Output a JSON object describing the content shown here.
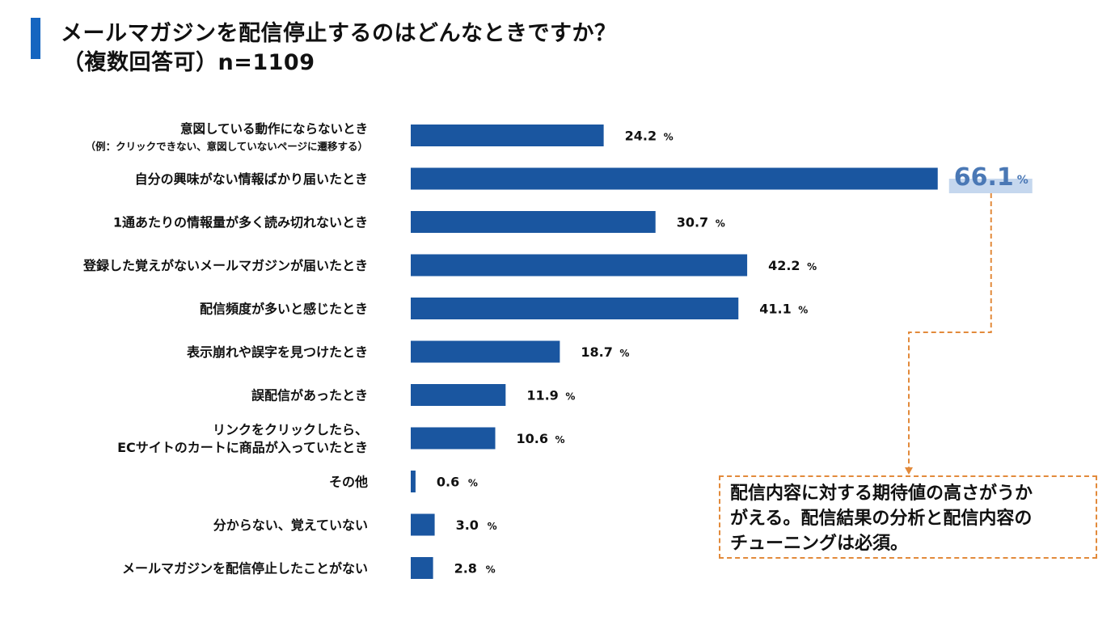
{
  "title": {
    "line1": "メールマガジンを配信停止するのはどんなときですか？",
    "line2": "（複数回答可）n=1109"
  },
  "colors": {
    "bar": "#1a56a0",
    "accent_bar": "#1565c0",
    "highlight_text": "#4a78b5",
    "highlight_bg": "#c5d7ee",
    "callout": "#e28a3b",
    "text": "#111111"
  },
  "chart_data": {
    "type": "bar",
    "orientation": "horizontal",
    "xlim": [
      0,
      70
    ],
    "unit": "%",
    "highlight_index": 1,
    "categories": [
      [
        "意図している動作にならないとき",
        "（例：クリックできない、意図していないページに遷移する）"
      ],
      [
        "自分の興味がない情報ばかり届いたとき"
      ],
      [
        "1通あたりの情報量が多く読み切れないとき"
      ],
      [
        "登録した覚えがないメールマガジンが届いたとき"
      ],
      [
        "配信頻度が多いと感じたとき"
      ],
      [
        "表示崩れや誤字を見つけたとき"
      ],
      [
        "誤配信があったとき"
      ],
      [
        "リンクをクリックしたら、",
        "ECサイトのカートに商品が入っていたとき"
      ],
      [
        "その他"
      ],
      [
        "分からない、覚えていない"
      ],
      [
        "メールマガジンを配信停止したことがない"
      ]
    ],
    "values": [
      24.2,
      66.1,
      30.7,
      42.2,
      41.1,
      18.7,
      11.9,
      10.6,
      0.6,
      3.0,
      2.8
    ],
    "value_labels": [
      "24.2",
      "66.1",
      "30.7",
      "42.2",
      "41.1",
      "18.7",
      "11.9",
      "10.6",
      "0.6",
      "3.0",
      "2.8"
    ]
  },
  "callout": {
    "lines": [
      "配信内容に対する期待値の高さがうか",
      "がえる。配信結果の分析と配信内容の",
      "チューニングは必須。"
    ]
  }
}
